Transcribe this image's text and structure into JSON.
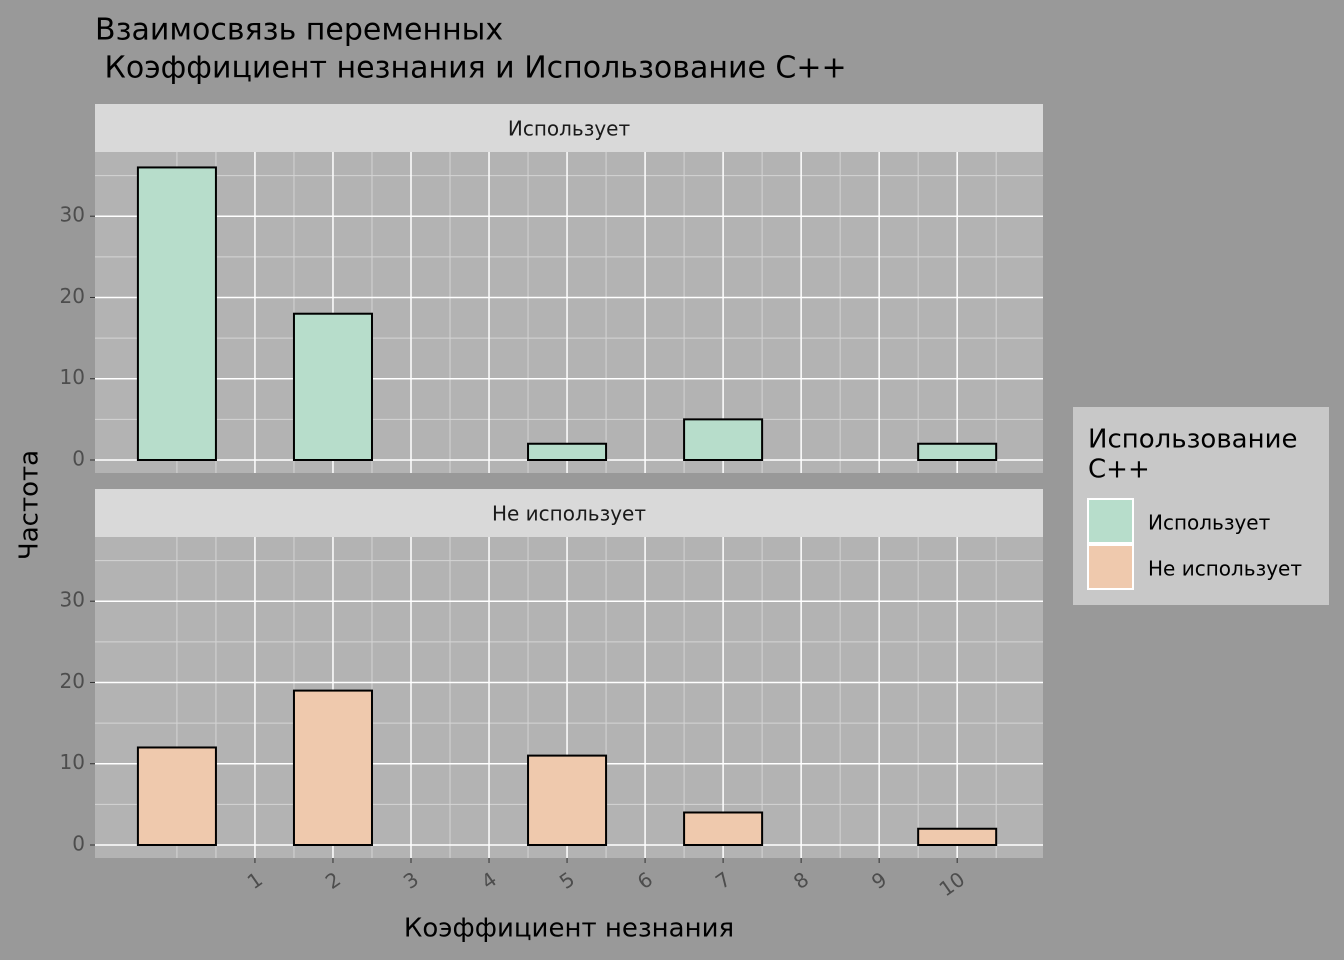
{
  "chart_data": {
    "type": "histogram",
    "title": [
      "Взаимосвязь переменных",
      " Коэффициент незнания и Использование C++"
    ],
    "xlabel": "Коэффициент незнания",
    "ylabel": "Частота",
    "legend_title": [
      "Использование",
      "C++"
    ],
    "legend": "right",
    "bins": [
      -0.5,
      0.5,
      1.5,
      2.5,
      3.5,
      4.5,
      5.5,
      6.5,
      7.5,
      8.5,
      9.5,
      10.5
    ],
    "series": [
      {
        "name": "Использует",
        "color": "#b7ddcb",
        "values": [
          36,
          0,
          18,
          0,
          0,
          2,
          0,
          5,
          0,
          0,
          2
        ]
      },
      {
        "name": "Не использует",
        "color": "#efc9ad",
        "values": [
          12,
          0,
          19,
          0,
          0,
          11,
          0,
          4,
          0,
          0,
          2
        ]
      }
    ],
    "xlim": [
      -1.05,
      11.1
    ],
    "xticks": [
      1,
      2,
      3,
      4,
      5,
      6,
      7,
      8,
      9,
      10
    ],
    "ylim": [
      -1.6,
      37.9
    ],
    "yticks": [
      0,
      10,
      20,
      30
    ],
    "grid": true
  }
}
